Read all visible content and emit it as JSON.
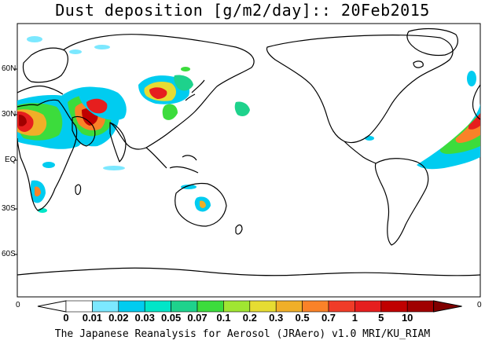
{
  "title": "Dust deposition [g/m2/day]:: 20Feb2015",
  "latitude_labels": [
    "60N",
    "30N",
    "EQ",
    "30S",
    "60S"
  ],
  "colorbar": {
    "left_value": "0",
    "right_value": "0",
    "labels": [
      "0",
      "0.01",
      "0.02",
      "0.03",
      "0.05",
      "0.07",
      "0.1",
      "0.2",
      "0.3",
      "0.5",
      "0.7",
      "1",
      "5",
      "10"
    ],
    "colors": [
      "#ffffff",
      "#ffffff",
      "#7ce8ff",
      "#00ccf0",
      "#00e6c8",
      "#1ed28c",
      "#3cdc3c",
      "#a0e632",
      "#e6dc32",
      "#f0af28",
      "#fa8228",
      "#f03c28",
      "#e61e1e",
      "#c00000",
      "#a00000",
      "#800000"
    ]
  },
  "footer": "The Japanese Reanalysis for Aerosol (JRAero) v1.0 MRI/KU_RIAM"
}
